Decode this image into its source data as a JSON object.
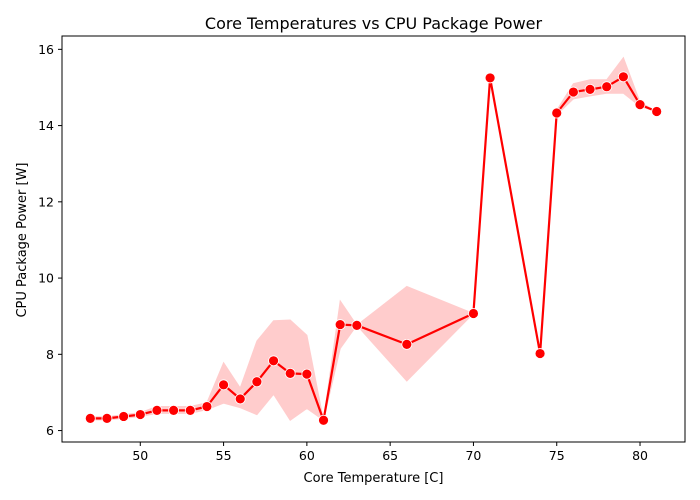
{
  "chart_data": {
    "type": "line",
    "title": "Core Temperatures vs CPU Package Power",
    "xlabel": "Core Temperature [C]",
    "ylabel": "CPU Package Power [W]",
    "xlim": [
      45.3,
      82.7
    ],
    "ylim": [
      5.7,
      16.35
    ],
    "xticks": [
      50,
      55,
      60,
      65,
      70,
      75,
      80
    ],
    "yticks": [
      6,
      8,
      10,
      12,
      14,
      16
    ],
    "grid": false,
    "color": "#ff0000",
    "band_color": "#ffcccc",
    "series": [
      {
        "x": [
          47,
          48,
          49,
          50,
          51,
          52,
          53,
          54,
          55,
          56,
          57,
          58,
          59,
          60,
          61,
          62,
          63,
          66,
          70,
          71,
          74,
          75,
          76,
          77,
          78,
          79,
          80,
          81
        ],
        "y": [
          6.32,
          6.32,
          6.37,
          6.42,
          6.53,
          6.53,
          6.53,
          6.63,
          7.2,
          6.83,
          7.28,
          7.83,
          7.5,
          7.48,
          6.27,
          8.78,
          8.76,
          8.26,
          9.07,
          15.25,
          8.02,
          14.33,
          14.88,
          14.95,
          15.02,
          15.28,
          14.55,
          14.37
        ],
        "ci_low": [
          6.28,
          6.28,
          6.32,
          6.37,
          6.45,
          6.45,
          6.45,
          6.55,
          6.72,
          6.6,
          6.42,
          6.95,
          6.27,
          6.58,
          6.27,
          8.15,
          8.76,
          7.3,
          9.07,
          15.25,
          8.02,
          14.28,
          14.7,
          14.78,
          14.85,
          14.85,
          14.5,
          14.37
        ],
        "ci_high": [
          6.36,
          6.36,
          6.42,
          6.47,
          6.63,
          6.63,
          6.63,
          6.73,
          7.78,
          7.12,
          8.35,
          8.88,
          8.9,
          8.5,
          6.27,
          9.4,
          8.76,
          9.78,
          9.07,
          15.25,
          8.02,
          14.4,
          15.1,
          15.2,
          15.2,
          15.78,
          14.62,
          14.37
        ]
      }
    ]
  }
}
